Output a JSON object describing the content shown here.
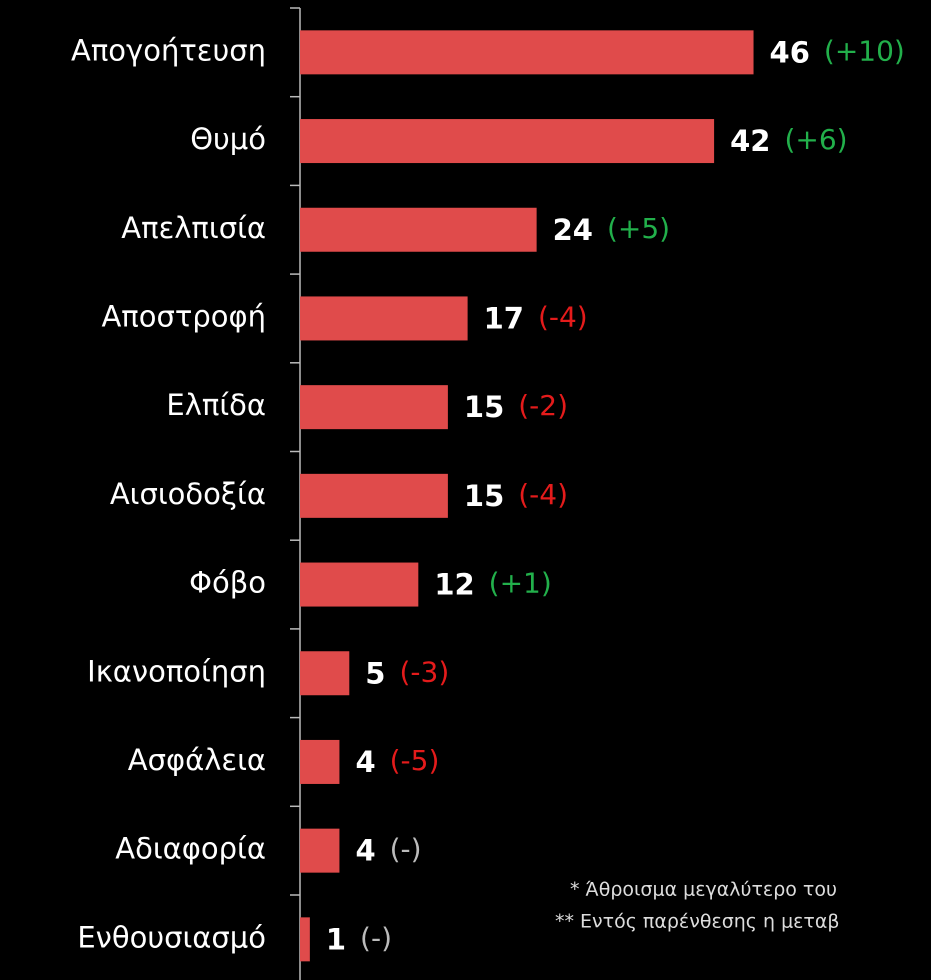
{
  "chart_data": {
    "type": "hbar",
    "categories": [
      "Απογοήτευση",
      "Θυμό",
      "Απελπισία",
      "Αποστροφή",
      "Ελπίδα",
      "Αισιοδοξία",
      "Φόβο",
      "Ικανοποίηση",
      "Ασφάλεια",
      "Αδιαφορία",
      "Ενθουσιασμό"
    ],
    "values": [
      46,
      42,
      24,
      17,
      15,
      15,
      12,
      5,
      4,
      4,
      1
    ],
    "changes": [
      "(+10)",
      "(+6)",
      "(+5)",
      "(-4)",
      "(-2)",
      "(-4)",
      "(+1)",
      "(-3)",
      "(-5)",
      "(-)",
      "(-)"
    ],
    "change_colors": [
      "#22b04b",
      "#22b04b",
      "#22b04b",
      "#e41b1b",
      "#e41b1b",
      "#e41b1b",
      "#22b04b",
      "#e41b1b",
      "#e41b1b",
      "#bbbbbb",
      "#bbbbbb"
    ],
    "color": "#e04b4b",
    "xlim": [
      0,
      64
    ],
    "notes": [
      "* Άθροισμα μεγαλύτερο του",
      "** Εντός παρένθεσης η μεταβ"
    ]
  }
}
